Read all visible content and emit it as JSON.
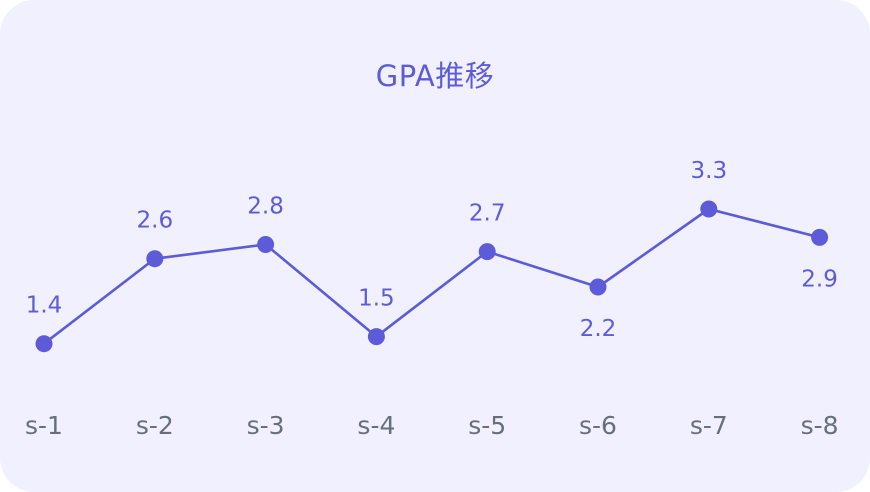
{
  "colors": {
    "background": "#f1f0fe",
    "accent": "#5d5bd8",
    "axis_text": "#666f7b"
  },
  "chart_data": {
    "type": "line",
    "title": "GPA推移",
    "categories": [
      "s-1",
      "s-2",
      "s-3",
      "s-4",
      "s-5",
      "s-6",
      "s-7",
      "s-8"
    ],
    "values": [
      1.4,
      2.6,
      2.8,
      1.5,
      2.7,
      2.2,
      3.3,
      2.9
    ],
    "data_label_position": [
      "above",
      "above",
      "above",
      "above",
      "above",
      "below",
      "above",
      "below"
    ],
    "ylim": [
      0,
      4
    ],
    "grid": false,
    "xlabel": "",
    "ylabel": ""
  }
}
